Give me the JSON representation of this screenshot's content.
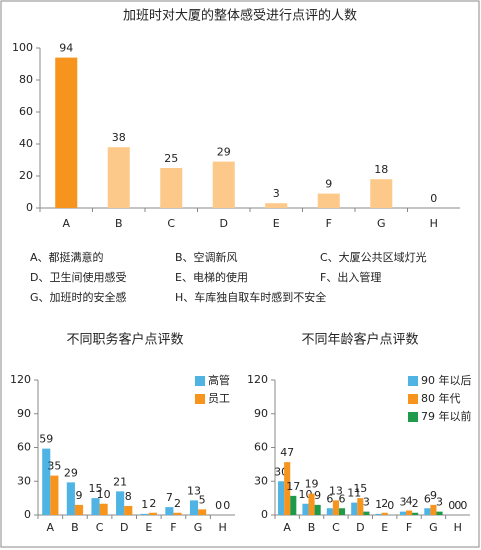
{
  "chart_data": [
    {
      "type": "bar",
      "title": "加班时对大厦的整体感受进行点评的人数",
      "categories": [
        "A",
        "B",
        "C",
        "D",
        "E",
        "F",
        "G",
        "H"
      ],
      "series": [
        {
          "colors": [
            "#f7941d",
            "#fdc98a",
            "#fdc98a",
            "#fdc98a",
            "#fdc98a",
            "#fdc98a",
            "#fdc98a",
            "#fdc98a"
          ],
          "values": [
            94,
            38,
            25,
            29,
            3,
            9,
            18,
            0
          ]
        }
      ],
      "ylim": [
        0,
        100
      ],
      "yticks": [
        0,
        20,
        40,
        60,
        80,
        100
      ],
      "category_notes": [
        "A、都挺满意的",
        "B、空调新风",
        "C、大厦公共区域灯光",
        "D、卫生间使用感受",
        "E、电梯的使用",
        "F、出入管理",
        "G、加班时的安全感",
        "H、车库独自取车时感到不安全"
      ]
    },
    {
      "type": "bar",
      "title": "不同职务客户点评数",
      "categories": [
        "A",
        "B",
        "C",
        "D",
        "E",
        "F",
        "G",
        "H"
      ],
      "series": [
        {
          "name": "高管",
          "color": "#4fb4e3",
          "values": [
            59,
            29,
            15,
            21,
            1,
            7,
            13,
            0
          ]
        },
        {
          "name": "员工",
          "color": "#f7941d",
          "values": [
            35,
            9,
            10,
            8,
            2,
            2,
            5,
            0
          ]
        }
      ],
      "ylim": [
        0,
        120
      ],
      "yticks": [
        0,
        30,
        60,
        90,
        120
      ],
      "legend": "top-right"
    },
    {
      "type": "bar",
      "title": "不同年龄客户点评数",
      "categories": [
        "A",
        "B",
        "C",
        "D",
        "E",
        "F",
        "G",
        "H"
      ],
      "series": [
        {
          "name": "90 年以后",
          "color": "#4fb4e3",
          "values": [
            30,
            10,
            6,
            11,
            1,
            3,
            6,
            0
          ]
        },
        {
          "name": "80 年代",
          "color": "#f7941d",
          "values": [
            47,
            19,
            13,
            15,
            2,
            4,
            9,
            0
          ]
        },
        {
          "name": "79 年以前",
          "color": "#1e9a4a",
          "values": [
            17,
            9,
            6,
            3,
            0,
            2,
            3,
            0
          ]
        }
      ],
      "ylim": [
        0,
        120
      ],
      "yticks": [
        0,
        30,
        60,
        90,
        120
      ],
      "legend": "top-right"
    }
  ]
}
